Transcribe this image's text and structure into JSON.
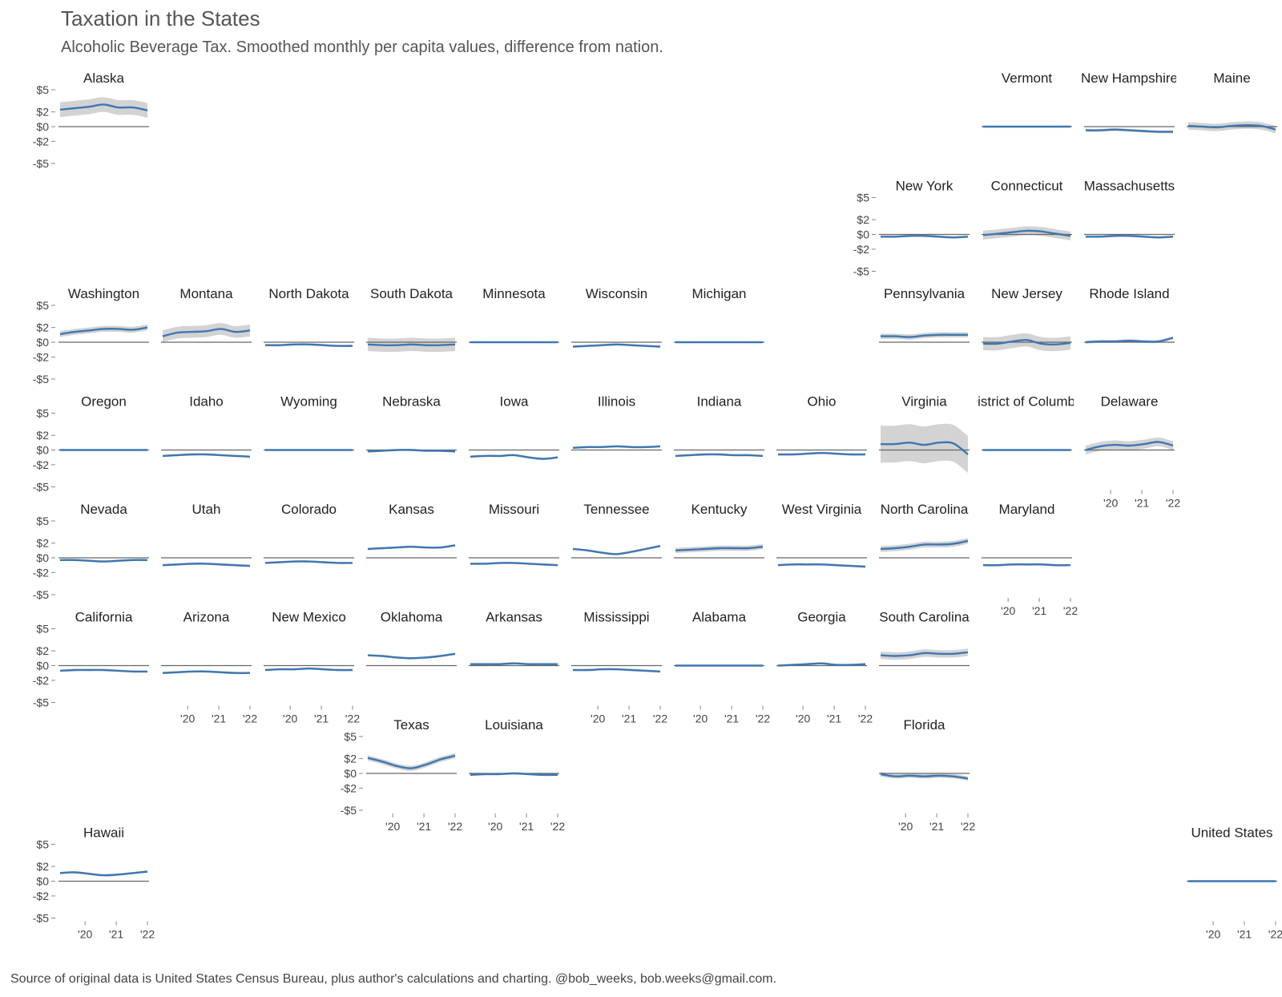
{
  "title": "Taxation in the States",
  "subtitle": "Alcoholic Beverage Tax. Smoothed monthly per capita values, difference from nation.",
  "source": "Source of original data is United States Census Bureau, plus author's calculations and charting. @bob_weeks, bob.weeks@gmail.com.",
  "colors": {
    "line": "#3e77b1",
    "band": "#d3d3d3",
    "zero": "#666666",
    "text": "#444444"
  },
  "chart_data": {
    "type": "line",
    "layout": "geographic small multiples",
    "ylim": [
      -5,
      5
    ],
    "y_ticks": [
      5,
      2,
      0,
      -2,
      -5
    ],
    "y_tick_labels": [
      "$5",
      "$2",
      "$0",
      "-$2",
      "-$5"
    ],
    "x_ticks": [
      2020,
      2021,
      2022
    ],
    "x_tick_labels": [
      "'20",
      "'21",
      "'22"
    ],
    "x_range": [
      2019.2,
      2022.0
    ],
    "panels": [
      {
        "name": "Alaska",
        "row": 0,
        "col": 0,
        "y_axis": true,
        "x_axis": false,
        "values": [
          2.3,
          2.5,
          2.7,
          3.0,
          2.6,
          2.6,
          2.2
        ],
        "band": 1.0
      },
      {
        "name": "Vermont",
        "row": 0,
        "col": 9,
        "y_axis": false,
        "x_axis": false,
        "values": [
          0,
          0,
          0,
          0,
          0,
          0,
          0
        ],
        "band": 0
      },
      {
        "name": "New Hampshire",
        "row": 0,
        "col": 10,
        "y_axis": false,
        "x_axis": false,
        "values": [
          -0.5,
          -0.5,
          -0.4,
          -0.5,
          -0.6,
          -0.7,
          -0.7
        ],
        "band": 0.2
      },
      {
        "name": "Maine",
        "row": 0,
        "col": 11,
        "y_axis": false,
        "x_axis": false,
        "values": [
          0.1,
          0.0,
          -0.1,
          0.1,
          0.2,
          0.1,
          -0.4
        ],
        "band": 0.5
      },
      {
        "name": "New York",
        "row": 1,
        "col": 8,
        "y_axis": true,
        "x_axis": false,
        "values": [
          -0.3,
          -0.3,
          -0.2,
          -0.2,
          -0.3,
          -0.4,
          -0.3
        ],
        "band": 0.15
      },
      {
        "name": "Connecticut",
        "row": 1,
        "col": 9,
        "y_axis": false,
        "x_axis": false,
        "values": [
          -0.1,
          0.1,
          0.3,
          0.5,
          0.4,
          0.1,
          -0.2
        ],
        "band": 0.6
      },
      {
        "name": "Massachusetts",
        "row": 1,
        "col": 10,
        "y_axis": false,
        "x_axis": false,
        "values": [
          -0.3,
          -0.3,
          -0.2,
          -0.2,
          -0.3,
          -0.4,
          -0.3
        ],
        "band": 0.15
      },
      {
        "name": "Washington",
        "row": 2,
        "col": 0,
        "y_axis": true,
        "x_axis": false,
        "values": [
          1.1,
          1.4,
          1.6,
          1.8,
          1.8,
          1.7,
          2.0
        ],
        "band": 0.4
      },
      {
        "name": "Montana",
        "row": 2,
        "col": 1,
        "y_axis": false,
        "x_axis": false,
        "values": [
          0.8,
          1.3,
          1.4,
          1.5,
          1.8,
          1.4,
          1.6
        ],
        "band": 0.8
      },
      {
        "name": "North Dakota",
        "row": 2,
        "col": 2,
        "y_axis": false,
        "x_axis": false,
        "values": [
          -0.4,
          -0.4,
          -0.3,
          -0.3,
          -0.4,
          -0.5,
          -0.5
        ],
        "band": 0.15
      },
      {
        "name": "South Dakota",
        "row": 2,
        "col": 3,
        "y_axis": false,
        "x_axis": false,
        "values": [
          -0.3,
          -0.4,
          -0.4,
          -0.3,
          -0.4,
          -0.4,
          -0.3
        ],
        "band": 0.9
      },
      {
        "name": "Minnesota",
        "row": 2,
        "col": 4,
        "y_axis": false,
        "x_axis": false,
        "values": [
          0,
          0,
          0,
          0,
          0,
          0,
          0
        ],
        "band": 0
      },
      {
        "name": "Wisconsin",
        "row": 2,
        "col": 5,
        "y_axis": false,
        "x_axis": false,
        "values": [
          -0.6,
          -0.5,
          -0.4,
          -0.3,
          -0.4,
          -0.5,
          -0.6
        ],
        "band": 0.15
      },
      {
        "name": "Michigan",
        "row": 2,
        "col": 6,
        "y_axis": false,
        "x_axis": false,
        "values": [
          0,
          0,
          0,
          0,
          0,
          0,
          0
        ],
        "band": 0
      },
      {
        "name": "Pennsylvania",
        "row": 2,
        "col": 8,
        "y_axis": false,
        "x_axis": false,
        "values": [
          0.8,
          0.8,
          0.7,
          0.9,
          1.0,
          1.0,
          1.0
        ],
        "band": 0.35
      },
      {
        "name": "New Jersey",
        "row": 2,
        "col": 9,
        "y_axis": false,
        "x_axis": false,
        "values": [
          -0.2,
          -0.2,
          0.1,
          0.3,
          -0.2,
          -0.3,
          -0.1
        ],
        "band": 0.9
      },
      {
        "name": "Rhode Island",
        "row": 2,
        "col": 10,
        "y_axis": false,
        "x_axis": false,
        "values": [
          0.0,
          0.1,
          0.1,
          0.2,
          0.1,
          0.1,
          0.6
        ],
        "band": 0.2
      },
      {
        "name": "Oregon",
        "row": 3,
        "col": 0,
        "y_axis": true,
        "x_axis": false,
        "values": [
          0,
          0,
          0,
          0,
          0,
          0,
          0
        ],
        "band": 0
      },
      {
        "name": "Idaho",
        "row": 3,
        "col": 1,
        "y_axis": false,
        "x_axis": false,
        "values": [
          -0.8,
          -0.7,
          -0.6,
          -0.6,
          -0.7,
          -0.8,
          -0.9
        ],
        "band": 0.15
      },
      {
        "name": "Wyoming",
        "row": 3,
        "col": 2,
        "y_axis": false,
        "x_axis": false,
        "values": [
          0,
          0,
          0,
          0,
          0,
          0,
          0
        ],
        "band": 0
      },
      {
        "name": "Nebraska",
        "row": 3,
        "col": 3,
        "y_axis": false,
        "x_axis": false,
        "values": [
          -0.2,
          -0.1,
          0.0,
          0.0,
          -0.1,
          -0.1,
          -0.2
        ],
        "band": 0.15
      },
      {
        "name": "Iowa",
        "row": 3,
        "col": 4,
        "y_axis": false,
        "x_axis": false,
        "values": [
          -0.9,
          -0.8,
          -0.8,
          -0.7,
          -1.0,
          -1.2,
          -1.0
        ],
        "band": 0.15
      },
      {
        "name": "Illinois",
        "row": 3,
        "col": 5,
        "y_axis": false,
        "x_axis": false,
        "values": [
          0.3,
          0.4,
          0.4,
          0.5,
          0.4,
          0.4,
          0.5
        ],
        "band": 0.15
      },
      {
        "name": "Indiana",
        "row": 3,
        "col": 6,
        "y_axis": false,
        "x_axis": false,
        "values": [
          -0.8,
          -0.7,
          -0.6,
          -0.6,
          -0.7,
          -0.7,
          -0.8
        ],
        "band": 0.15
      },
      {
        "name": "Ohio",
        "row": 3,
        "col": 7,
        "y_axis": false,
        "x_axis": false,
        "values": [
          -0.6,
          -0.6,
          -0.5,
          -0.4,
          -0.5,
          -0.6,
          -0.6
        ],
        "band": 0.15
      },
      {
        "name": "Virginia",
        "row": 3,
        "col": 8,
        "y_axis": false,
        "x_axis": false,
        "values": [
          0.8,
          0.8,
          1.0,
          0.7,
          1.0,
          0.9,
          -0.6
        ],
        "band": 2.5
      },
      {
        "name": "District of Columbia",
        "row": 3,
        "col": 9,
        "y_axis": false,
        "x_axis": false,
        "values": [
          0,
          0,
          0,
          0,
          0,
          0,
          0
        ],
        "band": 0
      },
      {
        "name": "Delaware",
        "row": 3,
        "col": 10,
        "y_axis": false,
        "x_axis": true,
        "values": [
          0.0,
          0.5,
          0.7,
          0.6,
          0.8,
          1.1,
          0.6
        ],
        "band": 0.6
      },
      {
        "name": "Nevada",
        "row": 4,
        "col": 0,
        "y_axis": true,
        "x_axis": false,
        "values": [
          -0.3,
          -0.3,
          -0.4,
          -0.5,
          -0.4,
          -0.3,
          -0.3
        ],
        "band": 0.15
      },
      {
        "name": "Utah",
        "row": 4,
        "col": 1,
        "y_axis": false,
        "x_axis": false,
        "values": [
          -1.0,
          -0.9,
          -0.8,
          -0.8,
          -0.9,
          -1.0,
          -1.1
        ],
        "band": 0.15
      },
      {
        "name": "Colorado",
        "row": 4,
        "col": 2,
        "y_axis": false,
        "x_axis": false,
        "values": [
          -0.7,
          -0.6,
          -0.5,
          -0.5,
          -0.6,
          -0.7,
          -0.7
        ],
        "band": 0.15
      },
      {
        "name": "Kansas",
        "row": 4,
        "col": 3,
        "y_axis": false,
        "x_axis": false,
        "values": [
          1.2,
          1.3,
          1.4,
          1.5,
          1.4,
          1.4,
          1.7
        ],
        "band": 0.15
      },
      {
        "name": "Missouri",
        "row": 4,
        "col": 4,
        "y_axis": false,
        "x_axis": false,
        "values": [
          -0.8,
          -0.8,
          -0.7,
          -0.7,
          -0.8,
          -0.9,
          -1.0
        ],
        "band": 0.15
      },
      {
        "name": "Tennessee",
        "row": 4,
        "col": 5,
        "y_axis": false,
        "x_axis": false,
        "values": [
          1.2,
          1.0,
          0.7,
          0.5,
          0.8,
          1.2,
          1.6
        ],
        "band": 0.15
      },
      {
        "name": "Kentucky",
        "row": 4,
        "col": 6,
        "y_axis": false,
        "x_axis": false,
        "values": [
          1.0,
          1.1,
          1.2,
          1.3,
          1.3,
          1.3,
          1.5
        ],
        "band": 0.35
      },
      {
        "name": "West Virginia",
        "row": 4,
        "col": 7,
        "y_axis": false,
        "x_axis": false,
        "values": [
          -1.0,
          -0.9,
          -0.9,
          -0.9,
          -1.0,
          -1.1,
          -1.2
        ],
        "band": 0.15
      },
      {
        "name": "North Carolina",
        "row": 4,
        "col": 8,
        "y_axis": false,
        "x_axis": false,
        "values": [
          1.2,
          1.3,
          1.5,
          1.8,
          1.8,
          1.9,
          2.3
        ],
        "band": 0.4
      },
      {
        "name": "Maryland",
        "row": 4,
        "col": 9,
        "y_axis": false,
        "x_axis": true,
        "values": [
          -1.0,
          -1.0,
          -0.9,
          -0.9,
          -0.9,
          -1.0,
          -1.0
        ],
        "band": 0.15
      },
      {
        "name": "California",
        "row": 5,
        "col": 0,
        "y_axis": true,
        "x_axis": false,
        "values": [
          -0.7,
          -0.6,
          -0.6,
          -0.6,
          -0.7,
          -0.8,
          -0.8
        ],
        "band": 0.15
      },
      {
        "name": "Arizona",
        "row": 5,
        "col": 1,
        "y_axis": false,
        "x_axis": true,
        "values": [
          -1.0,
          -0.9,
          -0.8,
          -0.8,
          -0.9,
          -1.0,
          -1.0
        ],
        "band": 0.15
      },
      {
        "name": "New Mexico",
        "row": 5,
        "col": 2,
        "y_axis": false,
        "x_axis": true,
        "values": [
          -0.6,
          -0.5,
          -0.5,
          -0.4,
          -0.5,
          -0.6,
          -0.6
        ],
        "band": 0.15
      },
      {
        "name": "Oklahoma",
        "row": 5,
        "col": 3,
        "y_axis": false,
        "x_axis": false,
        "values": [
          1.4,
          1.3,
          1.1,
          1.0,
          1.1,
          1.3,
          1.6
        ],
        "band": 0.15
      },
      {
        "name": "Arkansas",
        "row": 5,
        "col": 4,
        "y_axis": false,
        "x_axis": false,
        "values": [
          0.2,
          0.2,
          0.2,
          0.3,
          0.2,
          0.2,
          0.2
        ],
        "band": 0.15
      },
      {
        "name": "Mississippi",
        "row": 5,
        "col": 5,
        "y_axis": false,
        "x_axis": true,
        "values": [
          -0.6,
          -0.6,
          -0.5,
          -0.5,
          -0.6,
          -0.7,
          -0.8
        ],
        "band": 0.15
      },
      {
        "name": "Alabama",
        "row": 5,
        "col": 6,
        "y_axis": false,
        "x_axis": true,
        "values": [
          0,
          0,
          0,
          0,
          0,
          0,
          0
        ],
        "band": 0
      },
      {
        "name": "Georgia",
        "row": 5,
        "col": 7,
        "y_axis": false,
        "x_axis": true,
        "values": [
          0.0,
          0.1,
          0.2,
          0.3,
          0.1,
          0.1,
          0.2
        ],
        "band": 0.15
      },
      {
        "name": "South Carolina",
        "row": 5,
        "col": 8,
        "y_axis": false,
        "x_axis": false,
        "values": [
          1.4,
          1.3,
          1.4,
          1.7,
          1.6,
          1.6,
          1.8
        ],
        "band": 0.5
      },
      {
        "name": "Texas",
        "row": 6,
        "col": 3,
        "y_axis": true,
        "x_axis": true,
        "values": [
          2.1,
          1.6,
          1.0,
          0.7,
          1.2,
          1.9,
          2.4
        ],
        "band": 0.35
      },
      {
        "name": "Louisiana",
        "row": 6,
        "col": 4,
        "y_axis": false,
        "x_axis": true,
        "values": [
          -0.2,
          -0.1,
          -0.1,
          0.0,
          -0.1,
          -0.2,
          -0.2
        ],
        "band": 0.15
      },
      {
        "name": "Florida",
        "row": 6,
        "col": 8,
        "y_axis": false,
        "x_axis": true,
        "values": [
          -0.1,
          -0.4,
          -0.3,
          -0.4,
          -0.3,
          -0.4,
          -0.7
        ],
        "band": 0.3
      },
      {
        "name": "Hawaii",
        "row": 7,
        "col": 0,
        "y_axis": true,
        "x_axis": true,
        "values": [
          1.1,
          1.2,
          1.0,
          0.8,
          0.9,
          1.1,
          1.3
        ],
        "band": 0.15
      },
      {
        "name": "United States",
        "row": 7,
        "col": 11,
        "y_axis": false,
        "x_axis": true,
        "values": [
          0,
          0,
          0,
          0,
          0,
          0,
          0
        ],
        "band": 0
      }
    ]
  }
}
